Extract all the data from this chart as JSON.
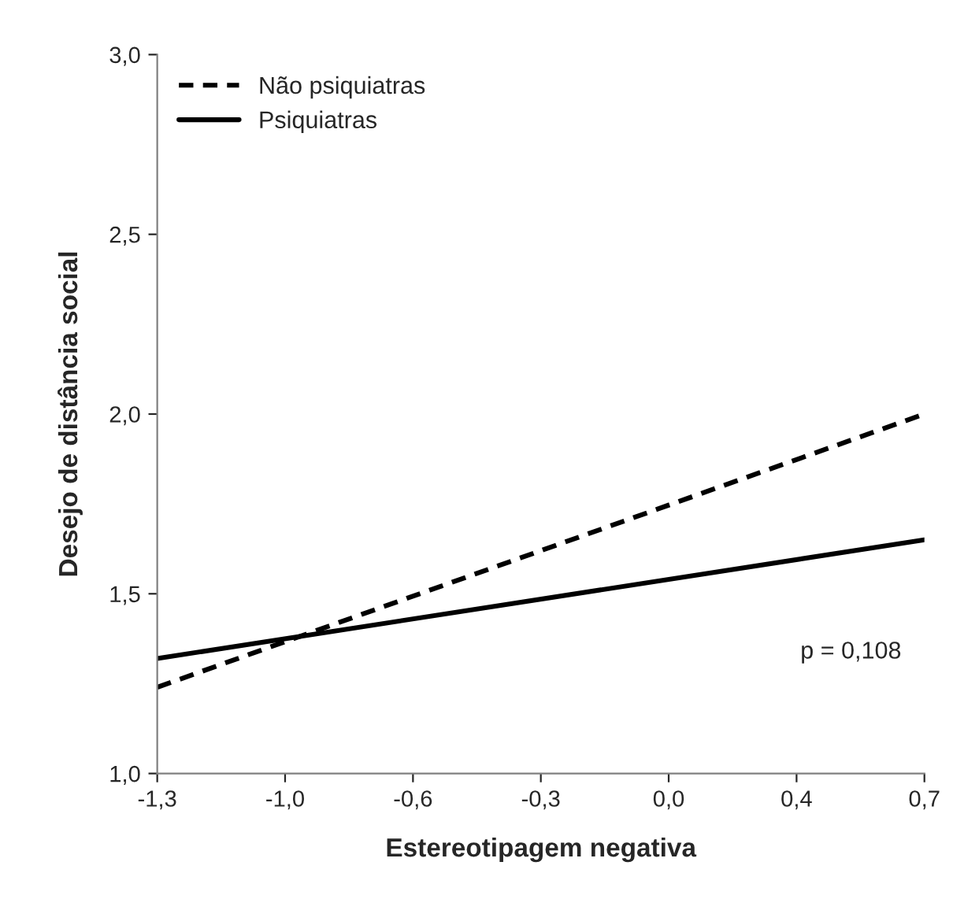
{
  "chart_data": {
    "type": "line",
    "xlabel": "Estereotipagem negativa",
    "ylabel": "Desejo de distância social",
    "x": [
      -1.3,
      0.7
    ],
    "series": [
      {
        "name": "Não psiquiatras",
        "color": "#000000",
        "line_style": "dashed",
        "values": [
          1.24,
          2.0
        ]
      },
      {
        "name": "Psiquiatras",
        "color": "#000000",
        "line_style": "solid",
        "values": [
          1.32,
          1.65
        ]
      }
    ],
    "xlim": [
      -1.3,
      0.7
    ],
    "xticks": [
      {
        "value": -1.3,
        "label": "-1,3"
      },
      {
        "value": -0.9667,
        "label": "-1,0"
      },
      {
        "value": -0.6333,
        "label": "-0,6"
      },
      {
        "value": -0.3,
        "label": "-0,3"
      },
      {
        "value": 0.0333,
        "label": "0,0"
      },
      {
        "value": 0.3667,
        "label": "0,4"
      },
      {
        "value": 0.7,
        "label": "0,7"
      }
    ],
    "ylim": [
      1.0,
      3.0
    ],
    "yticks": [
      {
        "value": 1.0,
        "label": "1,0"
      },
      {
        "value": 1.5,
        "label": "1,5"
      },
      {
        "value": 2.0,
        "label": "2,0"
      },
      {
        "value": 2.5,
        "label": "2,5"
      },
      {
        "value": 3.0,
        "label": "3,0"
      }
    ],
    "annotations": [
      "p = 0,108"
    ],
    "legend": "top left",
    "grid": false,
    "marker": "none"
  }
}
